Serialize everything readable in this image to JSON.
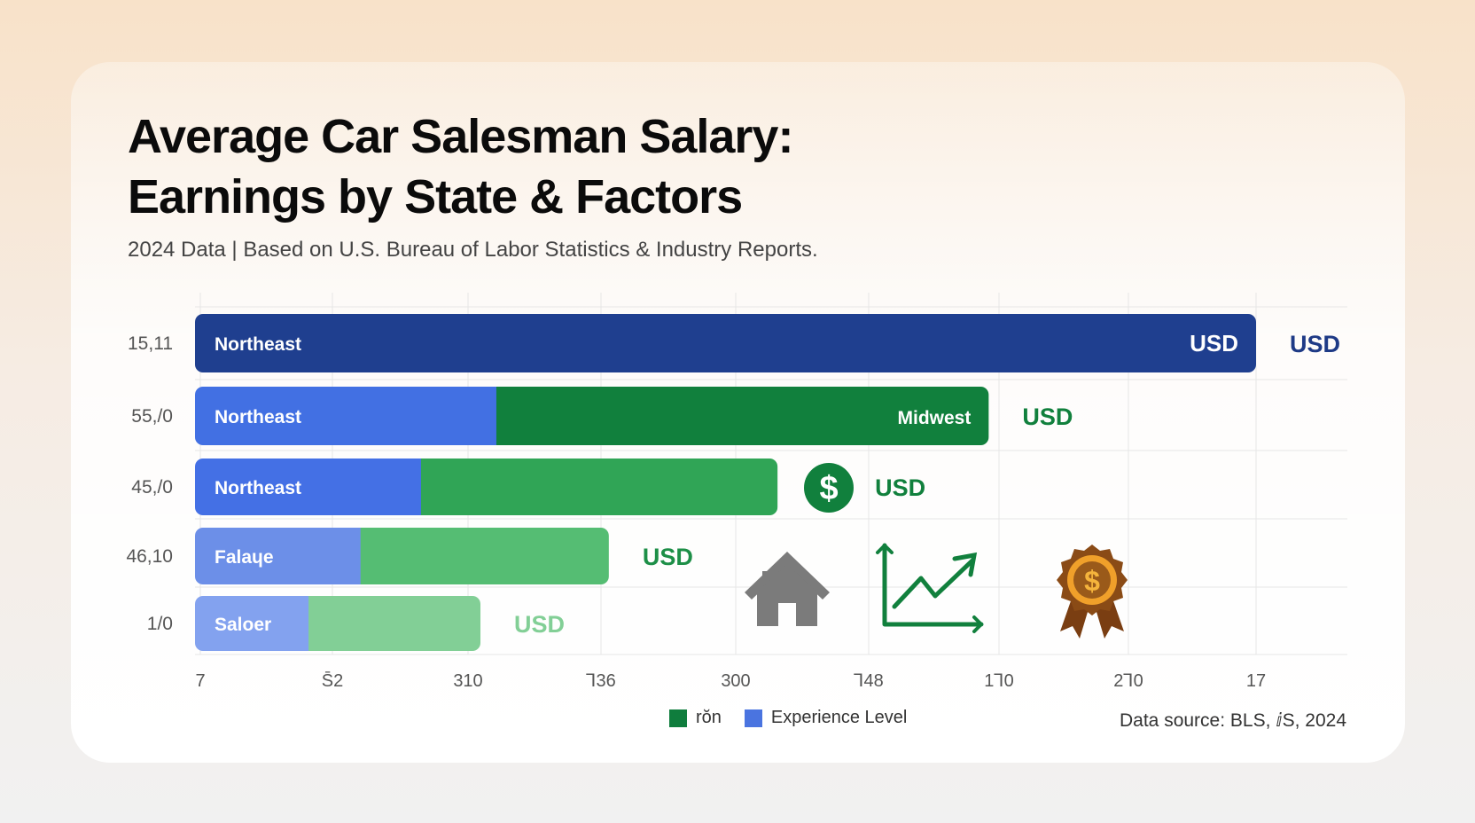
{
  "title": {
    "line1": "Average Car Salesman Salary:",
    "line2": "Earnings by State & Factors"
  },
  "subtitle": "2024 Data | Based on U.S. Bureau of Labor Statistics & Industry Reports.",
  "legend": [
    {
      "label": "rŏn",
      "color": "#0f7d3d"
    },
    {
      "label": "Experience Level",
      "color": "#4a74e0"
    }
  ],
  "source": "Data source: BLS, ⅈS, 2024",
  "icons": [
    "dollar-icon",
    "house-icon",
    "trend-up-icon",
    "award-medal-icon"
  ],
  "chart_data": {
    "type": "bar",
    "orientation": "horizontal",
    "stacked": true,
    "x_tick_labels": [
      "7",
      "S̄2",
      "310",
      "⅂36",
      "300",
      "⅂48",
      "1⅂0",
      "2⅂0",
      "17"
    ],
    "rows": [
      {
        "row_label": "15,11",
        "segments": [
          {
            "value": 1.0,
            "label": "Northeast",
            "color": "#1f3f8f"
          }
        ],
        "end_label": "USD",
        "after_label": "USD",
        "after_color": "#1e3a86"
      },
      {
        "row_label": "55,/0",
        "segments": [
          {
            "value": 0.284,
            "label": "Northeast",
            "color": "#4270e3"
          },
          {
            "value": 0.464,
            "label": "",
            "color": "#11803d"
          }
        ],
        "end_label": "Midwest",
        "after_label": "USD",
        "after_color": "#11803d"
      },
      {
        "row_label": "45,/0",
        "segments": [
          {
            "value": 0.213,
            "label": "Northeast",
            "color": "#4470e5"
          },
          {
            "value": 0.336,
            "label": "",
            "color": "#30a556"
          }
        ],
        "end_label": "",
        "after_label": "USD",
        "after_color": "#11803d"
      },
      {
        "row_label": "46,10",
        "segments": [
          {
            "value": 0.156,
            "label": "Falaɥe",
            "color": "#6c8fe8"
          },
          {
            "value": 0.234,
            "label": "",
            "color": "#55bd73"
          }
        ],
        "end_label": "",
        "after_label": "USD",
        "after_color": "#1d8f47"
      },
      {
        "row_label": "1/0",
        "segments": [
          {
            "value": 0.107,
            "label": "Saloer",
            "color": "#83a2ef"
          },
          {
            "value": 0.162,
            "label": "",
            "color": "#82cf96"
          }
        ],
        "end_label": "",
        "after_label": "USD",
        "after_color": "#82cf96"
      }
    ],
    "grid": true
  }
}
